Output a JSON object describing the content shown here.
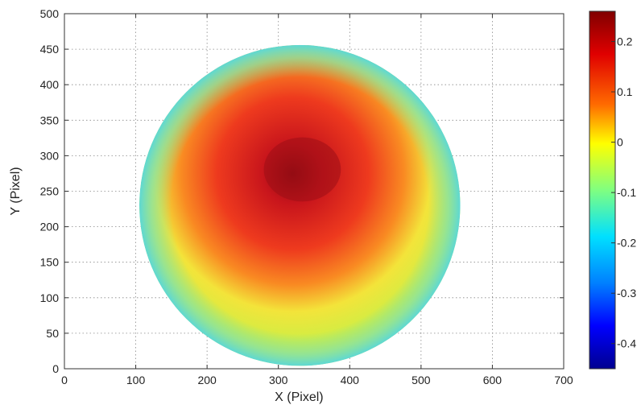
{
  "chart_data": {
    "type": "heatmap",
    "title": "",
    "xlabel": "X (Pixel)",
    "ylabel": "Y (Pixel)",
    "xlim": [
      0,
      700
    ],
    "ylim": [
      0,
      500
    ],
    "xticks": [
      0,
      100,
      200,
      300,
      400,
      500,
      600,
      700
    ],
    "xtick_labels": [
      "0",
      "100",
      "200",
      "300",
      "400",
      "500",
      "600",
      "700"
    ],
    "yticks": [
      0,
      50,
      100,
      150,
      200,
      250,
      300,
      350,
      400,
      450,
      500
    ],
    "ytick_labels": [
      "0",
      "50",
      "100",
      "150",
      "200",
      "250",
      "300",
      "350",
      "400",
      "450",
      "500"
    ],
    "grid": true,
    "colormap": "jet",
    "colorbar": {
      "range": [
        -0.45,
        0.26
      ],
      "ticks": [
        0.2,
        0.1,
        0,
        -0.1,
        -0.2,
        -0.3,
        -0.4
      ],
      "tick_labels": [
        "0.2",
        "0.1",
        "0",
        "-0.1",
        "-0.2",
        "-0.3",
        "-0.4"
      ],
      "location": "right"
    },
    "field": {
      "shape": "circle",
      "center": [
        330,
        230
      ],
      "radius": 225,
      "peak_center": [
        320,
        275
      ],
      "peak_value": 0.26,
      "edge_value": -0.15
    }
  }
}
